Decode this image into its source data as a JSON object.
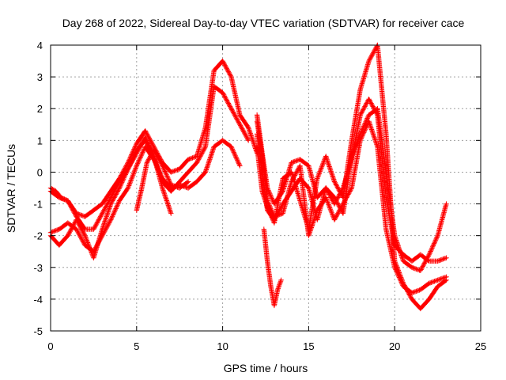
{
  "chart_data": {
    "type": "scatter",
    "title": "Day 268 of 2022, Sidereal Day-to-day VTEC variation (SDTVAR) for receiver cace",
    "xlabel": "GPS time / hours",
    "ylabel": "SDTVAR / TECUs",
    "xlim": [
      0,
      25
    ],
    "ylim": [
      -5,
      4
    ],
    "xticks": [
      0,
      5,
      10,
      15,
      20,
      25
    ],
    "yticks": [
      -5,
      -4,
      -3,
      -2,
      -1,
      0,
      1,
      2,
      3,
      4
    ],
    "grid": true,
    "marker": "+",
    "color": "#ff0000",
    "series": [
      {
        "x": [
          0.0,
          0.5,
          1.0,
          1.5,
          2.0,
          2.5,
          3.0,
          3.5,
          4.0,
          4.5,
          5.0,
          5.5,
          6.0,
          6.5,
          7.0,
          7.5,
          8.0,
          8.5,
          9.0,
          9.5,
          10.0,
          10.5,
          11.0,
          11.5,
          12.0
        ],
        "y": [
          -0.6,
          -0.8,
          -0.9,
          -1.3,
          -1.4,
          -1.2,
          -1.0,
          -0.6,
          -0.2,
          0.3,
          0.9,
          1.3,
          0.8,
          0.3,
          0.0,
          0.1,
          0.4,
          0.5,
          1.4,
          3.2,
          3.5,
          3.0,
          1.8,
          1.4,
          0.6
        ]
      },
      {
        "x": [
          0.0,
          0.3,
          0.6,
          1.0,
          1.5,
          2.0,
          2.5,
          3.0,
          3.5,
          4.0,
          4.5,
          5.0,
          5.5,
          6.0,
          6.5,
          7.0,
          7.5,
          8.0,
          8.5,
          9.0,
          9.5,
          10.0,
          10.5,
          11.0,
          11.5
        ],
        "y": [
          -0.5,
          -0.6,
          -0.8,
          -0.9,
          -1.4,
          -1.8,
          -1.8,
          -1.3,
          -0.8,
          -0.3,
          0.1,
          0.6,
          1.1,
          0.5,
          -0.3,
          -0.6,
          -0.3,
          0.0,
          0.3,
          0.8,
          2.7,
          2.5,
          2.0,
          1.5,
          1.0
        ]
      },
      {
        "x": [
          0.0,
          0.5,
          1.0,
          1.5,
          2.0,
          2.5,
          3.0,
          3.5,
          4.0,
          4.5,
          5.0,
          5.5,
          6.0,
          6.5,
          7.0,
          7.5,
          8.0,
          8.5,
          9.0,
          9.5,
          10.0,
          10.5,
          11.0
        ],
        "y": [
          -1.9,
          -1.8,
          -1.6,
          -1.8,
          -2.3,
          -2.5,
          -2.0,
          -1.5,
          -0.9,
          -0.5,
          0.2,
          0.8,
          0.4,
          -0.2,
          -0.5,
          -0.4,
          -0.5,
          -0.3,
          0.0,
          0.8,
          1.0,
          0.8,
          0.2
        ]
      },
      {
        "x": [
          0.0,
          0.5,
          1.0,
          1.5,
          2.0,
          2.5,
          3.0,
          3.5,
          4.0,
          4.5,
          5.0,
          5.5,
          6.0,
          6.5,
          7.0
        ],
        "y": [
          -2.0,
          -2.3,
          -2.0,
          -1.5,
          -2.0,
          -2.7,
          -1.8,
          -1.0,
          -0.5,
          0.1,
          0.7,
          1.0,
          0.5,
          -0.5,
          -1.3
        ]
      },
      {
        "x": [
          5.0,
          5.3,
          5.6,
          6.0,
          6.5,
          7.0,
          7.5,
          8.0
        ],
        "y": [
          -1.2,
          -0.5,
          0.3,
          0.7,
          0.2,
          -0.4,
          -0.5,
          -0.3
        ]
      },
      {
        "x": [
          12.0,
          12.3,
          12.6,
          13.0,
          13.5,
          14.0,
          14.5,
          15.0,
          15.5,
          16.0,
          16.5,
          17.0,
          17.5,
          18.0,
          18.5,
          19.0,
          19.5,
          20.0,
          20.5,
          21.0,
          21.5,
          22.0,
          22.5,
          23.0
        ],
        "y": [
          1.8,
          0.6,
          -0.5,
          -1.0,
          -0.6,
          0.3,
          0.4,
          0.2,
          -0.8,
          -0.5,
          -1.0,
          -0.5,
          0.4,
          1.8,
          2.3,
          1.8,
          -0.8,
          -2.3,
          -2.6,
          -2.8,
          -2.6,
          -2.8,
          -2.8,
          -2.7
        ]
      },
      {
        "x": [
          12.0,
          12.3,
          12.6,
          13.0,
          13.5,
          14.0,
          14.5,
          15.0,
          15.5,
          16.0,
          16.5,
          17.0,
          17.5,
          18.0,
          18.5,
          19.0,
          19.5,
          20.0,
          20.5,
          21.0,
          21.5,
          22.0,
          22.5,
          23.0
        ],
        "y": [
          1.6,
          0.5,
          -0.9,
          -1.4,
          -1.3,
          -0.3,
          0.2,
          -2.0,
          -1.2,
          -0.8,
          -1.5,
          -1.0,
          -0.5,
          1.0,
          1.6,
          0.8,
          -1.8,
          -3.0,
          -3.6,
          -3.8,
          -3.7,
          -3.5,
          -3.4,
          -3.3
        ]
      },
      {
        "x": [
          12.0,
          12.3,
          12.6,
          13.0,
          13.5,
          14.0,
          14.5,
          15.0,
          15.5,
          16.0,
          16.5,
          17.0,
          17.5,
          18.0,
          18.5,
          19.0,
          19.5,
          20.0,
          20.5,
          21.0,
          21.5,
          22.0,
          22.5,
          23.0
        ],
        "y": [
          1.2,
          0.0,
          -1.2,
          -1.5,
          -1.0,
          -0.6,
          -0.2,
          -0.5,
          -1.5,
          -0.5,
          -0.8,
          -1.3,
          0.5,
          1.2,
          1.8,
          2.0,
          0.0,
          -2.0,
          -2.8,
          -3.0,
          -3.1,
          -2.6,
          -2.0,
          -1.0
        ]
      },
      {
        "x": [
          12.0,
          12.3,
          12.6,
          13.0,
          13.5,
          14.0,
          14.5,
          15.0,
          15.5,
          16.0,
          16.5,
          17.0,
          17.5,
          18.0,
          18.5,
          19.0,
          19.5,
          20.0,
          20.5,
          21.0,
          21.5,
          22.0,
          22.5,
          23.0
        ],
        "y": [
          0.8,
          -0.6,
          -1.1,
          -1.6,
          -0.2,
          0.0,
          -0.9,
          -1.8,
          -0.2,
          0.5,
          -0.3,
          -0.8,
          1.0,
          2.6,
          3.5,
          4.0,
          1.2,
          -2.8,
          -3.5,
          -4.0,
          -4.3,
          -4.0,
          -3.6,
          -3.4
        ]
      },
      {
        "x": [
          12.4,
          12.6,
          12.8,
          13.0,
          13.2,
          13.4
        ],
        "y": [
          -1.8,
          -2.8,
          -3.6,
          -4.2,
          -3.7,
          -3.4
        ]
      }
    ]
  }
}
